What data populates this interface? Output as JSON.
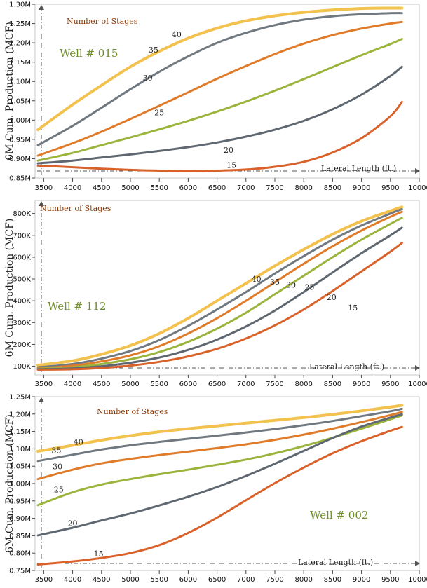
{
  "chart_data": [
    {
      "type": "line",
      "well_label": "Well # 015",
      "legend_title": "Number of Stages",
      "xlabel": "Lateral Length (ft.)",
      "ylabel": "6M Cum. Production (MCF)",
      "xlim": [
        3350,
        10000
      ],
      "ylim": [
        0.85,
        1.3
      ],
      "xticks": [
        3500,
        4000,
        4500,
        5000,
        5500,
        6000,
        6500,
        7000,
        7500,
        8000,
        8500,
        9000,
        9500,
        10000
      ],
      "yticks": [
        0.85,
        0.9,
        0.95,
        1.0,
        1.05,
        1.1,
        1.15,
        1.2,
        1.25,
        1.3
      ],
      "ytick_labels": [
        "0.85M",
        "0.90M",
        "0.95M",
        "1.00M",
        "1.05M",
        "1.10M",
        "1.15M",
        "1.20M",
        "1.25M",
        "1.30M"
      ],
      "series": [
        {
          "name": "40",
          "color": "#f2c14e",
          "label_at": [
            5800,
            1.215
          ],
          "x": [
            3400,
            4000,
            4500,
            5000,
            5500,
            6000,
            6500,
            7000,
            7500,
            8000,
            8500,
            9000,
            9500,
            9700
          ],
          "y": [
            0.975,
            1.04,
            1.09,
            1.138,
            1.178,
            1.212,
            1.238,
            1.257,
            1.27,
            1.279,
            1.285,
            1.289,
            1.29,
            1.29
          ]
        },
        {
          "name": "35",
          "color": "#707880",
          "label_at": [
            5400,
            1.175
          ],
          "x": [
            3400,
            4000,
            4500,
            5000,
            5500,
            6000,
            6500,
            7000,
            7500,
            8000,
            8500,
            9000,
            9500,
            9700
          ],
          "y": [
            0.935,
            0.985,
            1.032,
            1.08,
            1.125,
            1.165,
            1.2,
            1.226,
            1.246,
            1.26,
            1.269,
            1.274,
            1.277,
            1.277
          ]
        },
        {
          "name": "30",
          "color": "#e07b2a",
          "label_at": [
            5300,
            1.102
          ],
          "x": [
            3400,
            4000,
            4500,
            5000,
            5500,
            6000,
            6500,
            7000,
            7500,
            8000,
            8500,
            9000,
            9500,
            9700
          ],
          "y": [
            0.908,
            0.94,
            0.97,
            1.003,
            1.037,
            1.072,
            1.107,
            1.14,
            1.171,
            1.198,
            1.22,
            1.237,
            1.25,
            1.254
          ]
        },
        {
          "name": "25",
          "color": "#9ab43c",
          "label_at": [
            5500,
            1.012
          ],
          "x": [
            3400,
            4000,
            4500,
            5000,
            5500,
            6000,
            6500,
            7000,
            7500,
            8000,
            8500,
            9000,
            9500,
            9700
          ],
          "y": [
            0.895,
            0.915,
            0.935,
            0.955,
            0.976,
            0.998,
            1.022,
            1.048,
            1.076,
            1.106,
            1.137,
            1.168,
            1.197,
            1.21
          ]
        },
        {
          "name": "20",
          "color": "#5f6870",
          "label_at": [
            6700,
            0.915
          ],
          "x": [
            3400,
            4000,
            4500,
            5000,
            5500,
            6000,
            6500,
            7000,
            7500,
            8000,
            8500,
            9000,
            9500,
            9700
          ],
          "y": [
            0.888,
            0.895,
            0.903,
            0.911,
            0.92,
            0.93,
            0.942,
            0.957,
            0.975,
            0.998,
            1.028,
            1.066,
            1.114,
            1.138
          ]
        },
        {
          "name": "15",
          "color": "#d9622b",
          "label_at": [
            6750,
            0.876
          ],
          "x": [
            3400,
            4000,
            4500,
            5000,
            5500,
            6000,
            6500,
            7000,
            7500,
            8000,
            8500,
            9000,
            9500,
            9700
          ],
          "y": [
            0.882,
            0.878,
            0.874,
            0.871,
            0.869,
            0.868,
            0.869,
            0.872,
            0.879,
            0.892,
            0.916,
            0.953,
            1.01,
            1.047
          ]
        }
      ]
    },
    {
      "type": "line",
      "well_label": "Well # 112",
      "legend_title": "Number of Stages",
      "xlabel": "Lateral Length (ft.)",
      "ylabel": "6M Cum. Production (MCF)",
      "xlim": [
        3350,
        10000
      ],
      "ylim": [
        60000,
        860000
      ],
      "xticks": [
        3500,
        4000,
        4500,
        5000,
        5500,
        6000,
        6500,
        7000,
        7500,
        8000,
        8500,
        9000,
        9500,
        10000
      ],
      "yticks": [
        100000,
        200000,
        300000,
        400000,
        500000,
        600000,
        700000,
        800000
      ],
      "ytick_labels": [
        "100K",
        "200K",
        "300K",
        "400K",
        "500K",
        "600K",
        "700K",
        "800K"
      ],
      "series": [
        {
          "name": "40",
          "color": "#f2c14e",
          "label_at": [
            7180,
            488000
          ],
          "x": [
            3400,
            4000,
            4500,
            5000,
            5500,
            6000,
            6500,
            7000,
            7500,
            8000,
            8500,
            9000,
            9500,
            9700
          ],
          "y": [
            105000,
            125000,
            155000,
            195000,
            250000,
            320000,
            400000,
            480000,
            560000,
            635000,
            705000,
            765000,
            812000,
            830000
          ]
        },
        {
          "name": "35",
          "color": "#707880",
          "label_at": [
            7500,
            475000
          ],
          "x": [
            3400,
            4000,
            4500,
            5000,
            5500,
            6000,
            6500,
            7000,
            7500,
            8000,
            8500,
            9000,
            9500,
            9700
          ],
          "y": [
            95000,
            110000,
            135000,
            170000,
            220000,
            285000,
            360000,
            440000,
            525000,
            605000,
            680000,
            745000,
            800000,
            820000
          ]
        },
        {
          "name": "30",
          "color": "#e07b2a",
          "label_at": [
            7780,
            460000
          ],
          "x": [
            3400,
            4000,
            4500,
            5000,
            5500,
            6000,
            6500,
            7000,
            7500,
            8000,
            8500,
            9000,
            9500,
            9700
          ],
          "y": [
            90000,
            102000,
            122000,
            150000,
            192000,
            250000,
            320000,
            400000,
            485000,
            570000,
            650000,
            722000,
            785000,
            808000
          ]
        },
        {
          "name": "25",
          "color": "#9ab43c",
          "label_at": [
            8100,
            450000
          ],
          "x": [
            3400,
            4000,
            4500,
            5000,
            5500,
            6000,
            6500,
            7000,
            7500,
            8000,
            8500,
            9000,
            9500,
            9700
          ],
          "y": [
            88000,
            95000,
            110000,
            132000,
            165000,
            212000,
            272000,
            345000,
            430000,
            515000,
            600000,
            680000,
            752000,
            780000
          ]
        },
        {
          "name": "20",
          "color": "#5f6870",
          "label_at": [
            8480,
            403000
          ],
          "x": [
            3400,
            4000,
            4500,
            5000,
            5500,
            6000,
            6500,
            7000,
            7500,
            8000,
            8500,
            9000,
            9500,
            9700
          ],
          "y": [
            86000,
            90000,
            100000,
            116000,
            140000,
            175000,
            222000,
            282000,
            355000,
            440000,
            530000,
            618000,
            700000,
            735000
          ]
        },
        {
          "name": "15",
          "color": "#d9622b",
          "label_at": [
            8850,
            355000
          ],
          "x": [
            3400,
            4000,
            4500,
            5000,
            5500,
            6000,
            6500,
            7000,
            7500,
            8000,
            8500,
            9000,
            9500,
            9700
          ],
          "y": [
            84000,
            86000,
            92000,
            103000,
            120000,
            145000,
            180000,
            227000,
            287000,
            360000,
            445000,
            535000,
            625000,
            665000
          ]
        }
      ]
    },
    {
      "type": "line",
      "well_label": "Well # 002",
      "legend_title": "Number of Stages",
      "xlabel": "Lateral Length (ft.)",
      "ylabel": "6M Cum. Production (MCF)",
      "xlim": [
        3350,
        10000
      ],
      "ylim": [
        0.75,
        1.25
      ],
      "xticks": [
        3500,
        4000,
        4500,
        5000,
        5500,
        6000,
        6500,
        7000,
        7500,
        8000,
        8500,
        9000,
        9500,
        10000
      ],
      "yticks": [
        0.75,
        0.8,
        0.85,
        0.9,
        0.95,
        1.0,
        1.05,
        1.1,
        1.15,
        1.2,
        1.25
      ],
      "ytick_labels": [
        "0.75M",
        "0.80M",
        "0.85M",
        "0.90M",
        "0.95M",
        "1.00M",
        "1.05M",
        "1.10M",
        "1.15M",
        "1.20M",
        "1.25M"
      ],
      "series": [
        {
          "name": "40",
          "color": "#f2c14e",
          "label_at": [
            4100,
            1.112
          ],
          "x": [
            3400,
            4000,
            4500,
            5000,
            5500,
            6000,
            6500,
            7000,
            7500,
            8000,
            8500,
            9000,
            9500,
            9700
          ],
          "y": [
            1.093,
            1.11,
            1.125,
            1.138,
            1.149,
            1.158,
            1.166,
            1.174,
            1.182,
            1.19,
            1.199,
            1.209,
            1.22,
            1.225
          ]
        },
        {
          "name": "35",
          "color": "#707880",
          "label_at": [
            3720,
            1.088
          ],
          "x": [
            3400,
            4000,
            4500,
            5000,
            5500,
            6000,
            6500,
            7000,
            7500,
            8000,
            8500,
            9000,
            9500,
            9700
          ],
          "y": [
            1.065,
            1.083,
            1.098,
            1.11,
            1.12,
            1.129,
            1.138,
            1.147,
            1.157,
            1.168,
            1.18,
            1.194,
            1.208,
            1.215
          ]
        },
        {
          "name": "30",
          "color": "#e07b2a",
          "label_at": [
            3740,
            1.041
          ],
          "x": [
            3400,
            4000,
            4500,
            5000,
            5500,
            6000,
            6500,
            7000,
            7500,
            8000,
            8500,
            9000,
            9500,
            9700
          ],
          "y": [
            1.013,
            1.04,
            1.058,
            1.071,
            1.082,
            1.092,
            1.102,
            1.113,
            1.126,
            1.141,
            1.158,
            1.177,
            1.197,
            1.206
          ]
        },
        {
          "name": "25",
          "color": "#9ab43c",
          "label_at": [
            3760,
            0.975
          ],
          "x": [
            3400,
            4000,
            4500,
            5000,
            5500,
            6000,
            6500,
            7000,
            7500,
            8000,
            8500,
            9000,
            9500,
            9700
          ],
          "y": [
            0.938,
            0.975,
            0.997,
            1.013,
            1.027,
            1.04,
            1.054,
            1.069,
            1.087,
            1.108,
            1.132,
            1.158,
            1.185,
            1.196
          ]
        },
        {
          "name": "20",
          "color": "#5f6870",
          "label_at": [
            4000,
            0.878
          ],
          "x": [
            3400,
            4000,
            4500,
            5000,
            5500,
            6000,
            6500,
            7000,
            7500,
            8000,
            8500,
            9000,
            9500,
            9700
          ],
          "y": [
            0.851,
            0.873,
            0.894,
            0.914,
            0.937,
            0.962,
            0.99,
            1.022,
            1.057,
            1.094,
            1.131,
            1.164,
            1.19,
            1.199
          ]
        },
        {
          "name": "15",
          "color": "#d9622b",
          "label_at": [
            4450,
            0.79
          ],
          "x": [
            3400,
            4000,
            4500,
            5000,
            5500,
            6000,
            6500,
            7000,
            7500,
            8000,
            8500,
            9000,
            9500,
            9700
          ],
          "y": [
            0.767,
            0.776,
            0.786,
            0.8,
            0.823,
            0.858,
            0.902,
            0.952,
            1.001,
            1.046,
            1.087,
            1.122,
            1.152,
            1.163
          ]
        }
      ]
    }
  ]
}
